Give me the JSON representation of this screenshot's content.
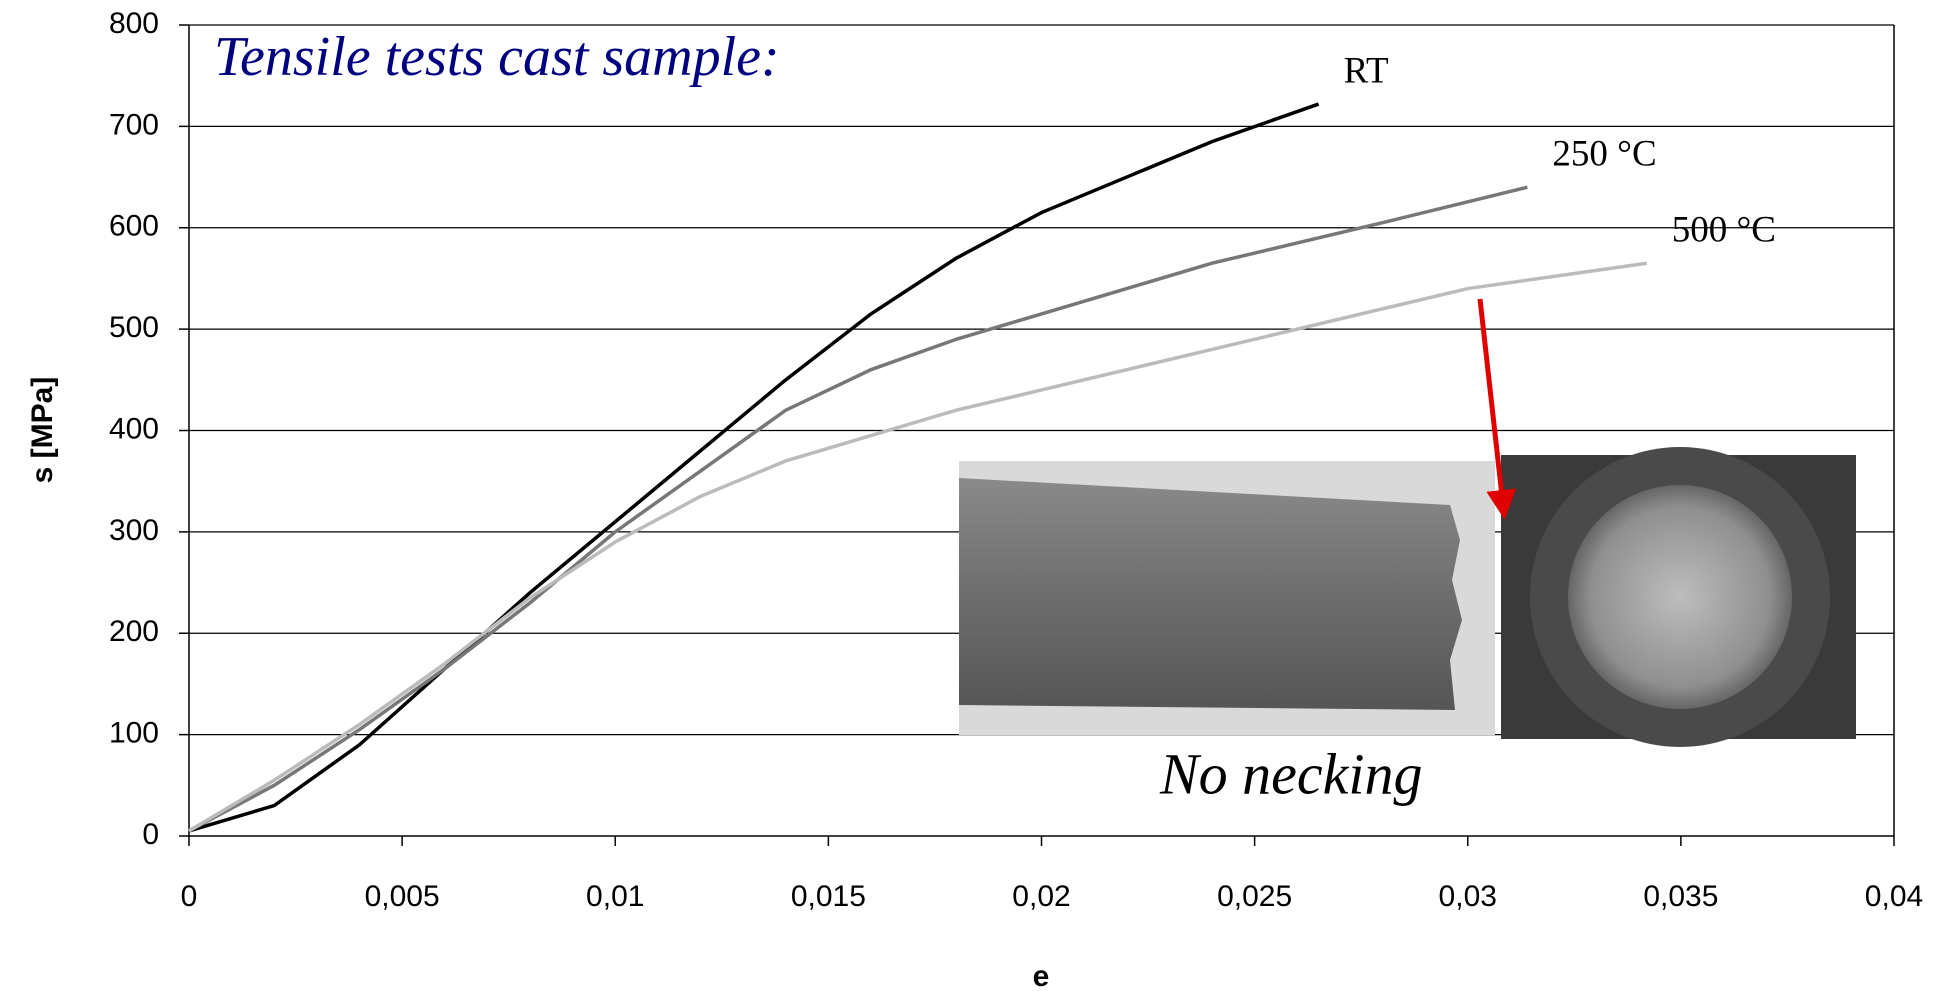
{
  "chart_data": {
    "type": "line",
    "title": "Tensile tests cast sample:",
    "x_label": "e",
    "y_label": "s [MPa]",
    "annotation": "No necking",
    "xlim": [
      0,
      0.04
    ],
    "ylim": [
      0,
      800
    ],
    "xticks": [
      0,
      {
        "value": 0.005,
        "label": "0,005"
      },
      {
        "value": 0.01,
        "label": "0,01"
      },
      {
        "value": 0.015,
        "label": "0,015"
      },
      {
        "value": 0.02,
        "label": "0,02"
      },
      {
        "value": 0.025,
        "label": "0,025"
      },
      {
        "value": 0.03,
        "label": "0,03"
      },
      {
        "value": 0.035,
        "label": "0,035"
      },
      {
        "value": 0.04,
        "label": "0,04"
      }
    ],
    "yticks": [
      0,
      100,
      200,
      300,
      400,
      500,
      600,
      700,
      800
    ],
    "grid": true,
    "series": [
      {
        "name": "RT",
        "color": "#000000",
        "x": [
          0,
          0.002,
          0.004,
          0.006,
          0.008,
          0.01,
          0.012,
          0.014,
          0.016,
          0.018,
          0.02,
          0.022,
          0.024,
          0.0265
        ],
        "values": [
          5,
          30,
          90,
          165,
          240,
          310,
          380,
          450,
          515,
          570,
          615,
          650,
          685,
          722
        ]
      },
      {
        "name": "250 °C",
        "color": "#777777",
        "x": [
          0,
          0.002,
          0.004,
          0.006,
          0.008,
          0.01,
          0.012,
          0.014,
          0.016,
          0.018,
          0.02,
          0.022,
          0.024,
          0.026,
          0.028,
          0.0314
        ],
        "values": [
          5,
          50,
          105,
          165,
          230,
          300,
          360,
          420,
          460,
          490,
          515,
          540,
          565,
          585,
          605,
          640
        ]
      },
      {
        "name": "500 °C",
        "color": "#bbbbbb",
        "x": [
          0,
          0.002,
          0.004,
          0.006,
          0.008,
          0.01,
          0.012,
          0.014,
          0.016,
          0.018,
          0.02,
          0.022,
          0.024,
          0.026,
          0.028,
          0.03,
          0.0342
        ],
        "values": [
          5,
          55,
          110,
          170,
          235,
          290,
          335,
          370,
          395,
          420,
          440,
          460,
          480,
          500,
          520,
          540,
          565
        ]
      }
    ]
  }
}
